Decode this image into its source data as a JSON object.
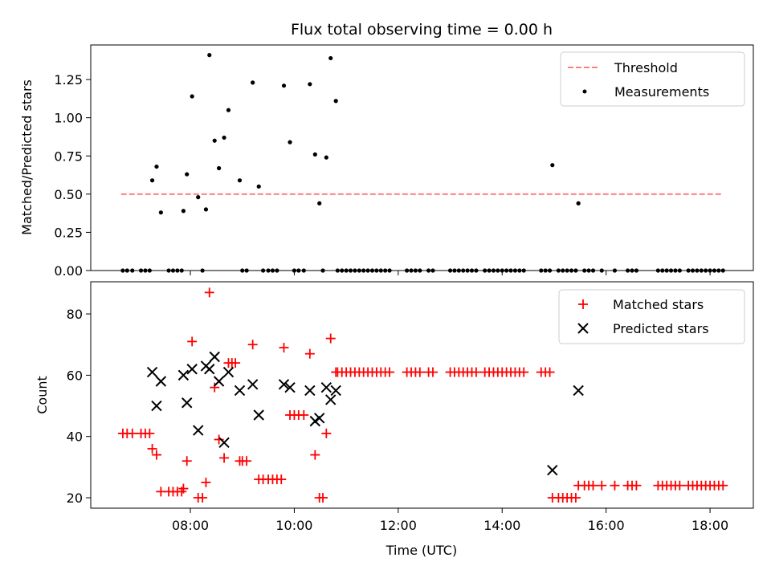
{
  "title": "Flux total observing time = 0.00 h",
  "xlabel": "Time (UTC)",
  "xticks": [
    "08:00",
    "10:00",
    "12:00",
    "14:00",
    "16:00",
    "18:00"
  ],
  "colors": {
    "threshold": "#ff7f7f",
    "measurement": "#000000",
    "matched": "#ff0000",
    "predicted": "#000000"
  },
  "chart_data": [
    {
      "type": "scatter",
      "ylabel": "Matched/Predicted stars",
      "yticks": [
        "0.00",
        "0.25",
        "0.50",
        "0.75",
        "1.00",
        "1.25"
      ],
      "xlim": [
        "06:05",
        "18:50"
      ],
      "ylim": [
        0,
        1.4764
      ],
      "legend_position": "top-right",
      "legend": {
        "threshold": "Threshold",
        "measurements": "Measurements"
      },
      "threshold": {
        "value": 0.5,
        "x_range": [
          "06:40",
          "18:15"
        ]
      },
      "series": [
        {
          "name": "Measurements",
          "points": [
            [
              "07:16",
              0.59
            ],
            [
              "07:21",
              0.68
            ],
            [
              "07:26",
              0.38
            ],
            [
              "07:52",
              0.39
            ],
            [
              "07:56",
              0.63
            ],
            [
              "08:02",
              1.14
            ],
            [
              "08:09",
              0.48
            ],
            [
              "08:18",
              0.4
            ],
            [
              "08:22",
              1.41
            ],
            [
              "08:28",
              0.85
            ],
            [
              "08:33",
              0.67
            ],
            [
              "08:39",
              0.87
            ],
            [
              "08:44",
              1.05
            ],
            [
              "08:57",
              0.59
            ],
            [
              "09:12",
              1.23
            ],
            [
              "09:19",
              0.55
            ],
            [
              "09:48",
              1.21
            ],
            [
              "09:55",
              0.84
            ],
            [
              "10:18",
              1.22
            ],
            [
              "10:24",
              0.76
            ],
            [
              "10:29",
              0.44
            ],
            [
              "10:37",
              0.74
            ],
            [
              "10:42",
              1.39
            ],
            [
              "10:48",
              1.11
            ],
            [
              "14:58",
              0.69
            ],
            [
              "15:28",
              0.44
            ],
            [
              "06:42",
              0
            ],
            [
              "06:47",
              0
            ],
            [
              "06:53",
              0
            ],
            [
              "07:03",
              0
            ],
            [
              "07:08",
              0
            ],
            [
              "07:13",
              0
            ],
            [
              "07:35",
              0
            ],
            [
              "07:40",
              0
            ],
            [
              "07:45",
              0
            ],
            [
              "07:50",
              0
            ],
            [
              "08:14",
              0
            ],
            [
              "09:00",
              0
            ],
            [
              "09:05",
              0
            ],
            [
              "09:24",
              0
            ],
            [
              "09:30",
              0
            ],
            [
              "09:35",
              0
            ],
            [
              "09:40",
              0
            ],
            [
              "10:00",
              0
            ],
            [
              "10:05",
              0
            ],
            [
              "10:11",
              0
            ],
            [
              "10:33",
              0
            ],
            [
              "10:50",
              0
            ],
            [
              "10:55",
              0
            ],
            [
              "11:00",
              0
            ],
            [
              "11:05",
              0
            ],
            [
              "11:10",
              0
            ],
            [
              "11:15",
              0
            ],
            [
              "11:20",
              0
            ],
            [
              "11:25",
              0
            ],
            [
              "11:30",
              0
            ],
            [
              "11:35",
              0
            ],
            [
              "11:40",
              0
            ],
            [
              "11:45",
              0
            ],
            [
              "11:50",
              0
            ],
            [
              "12:10",
              0
            ],
            [
              "12:15",
              0
            ],
            [
              "12:20",
              0
            ],
            [
              "12:25",
              0
            ],
            [
              "12:35",
              0
            ],
            [
              "12:40",
              0
            ],
            [
              "13:00",
              0
            ],
            [
              "13:05",
              0
            ],
            [
              "13:10",
              0
            ],
            [
              "13:15",
              0
            ],
            [
              "13:20",
              0
            ],
            [
              "13:25",
              0
            ],
            [
              "13:30",
              0
            ],
            [
              "13:40",
              0
            ],
            [
              "13:45",
              0
            ],
            [
              "13:50",
              0
            ],
            [
              "13:55",
              0
            ],
            [
              "14:00",
              0
            ],
            [
              "14:05",
              0
            ],
            [
              "14:10",
              0
            ],
            [
              "14:15",
              0
            ],
            [
              "14:20",
              0
            ],
            [
              "14:25",
              0
            ],
            [
              "14:45",
              0
            ],
            [
              "14:50",
              0
            ],
            [
              "14:55",
              0
            ],
            [
              "15:05",
              0
            ],
            [
              "15:10",
              0
            ],
            [
              "15:15",
              0
            ],
            [
              "15:20",
              0
            ],
            [
              "15:25",
              0
            ],
            [
              "15:35",
              0
            ],
            [
              "15:40",
              0
            ],
            [
              "15:45",
              0
            ],
            [
              "15:55",
              0
            ],
            [
              "16:10",
              0
            ],
            [
              "16:25",
              0
            ],
            [
              "16:30",
              0
            ],
            [
              "16:35",
              0
            ],
            [
              "17:00",
              0
            ],
            [
              "17:05",
              0
            ],
            [
              "17:10",
              0
            ],
            [
              "17:15",
              0
            ],
            [
              "17:20",
              0
            ],
            [
              "17:25",
              0
            ],
            [
              "17:35",
              0
            ],
            [
              "17:40",
              0
            ],
            [
              "17:45",
              0
            ],
            [
              "17:50",
              0
            ],
            [
              "17:55",
              0
            ],
            [
              "18:00",
              0
            ],
            [
              "18:05",
              0
            ],
            [
              "18:10",
              0
            ],
            [
              "18:15",
              0
            ]
          ]
        }
      ]
    },
    {
      "type": "scatter",
      "ylabel": "Count",
      "yticks": [
        "20",
        "40",
        "60",
        "80"
      ],
      "xlim": [
        "06:05",
        "18:50"
      ],
      "ylim": [
        16.6,
        90.5
      ],
      "legend_position": "top-right",
      "series": [
        {
          "name": "Matched stars",
          "marker": "plus",
          "points": [
            [
              "06:42",
              41
            ],
            [
              "06:47",
              41
            ],
            [
              "06:53",
              41
            ],
            [
              "07:03",
              41
            ],
            [
              "07:08",
              41
            ],
            [
              "07:13",
              41
            ],
            [
              "07:16",
              36
            ],
            [
              "07:21",
              34
            ],
            [
              "07:26",
              22
            ],
            [
              "07:35",
              22
            ],
            [
              "07:40",
              22
            ],
            [
              "07:45",
              22
            ],
            [
              "07:50",
              22
            ],
            [
              "07:52",
              23
            ],
            [
              "07:56",
              32
            ],
            [
              "08:02",
              71
            ],
            [
              "08:09",
              20
            ],
            [
              "08:14",
              20
            ],
            [
              "08:18",
              25
            ],
            [
              "08:22",
              87
            ],
            [
              "08:28",
              56
            ],
            [
              "08:33",
              39
            ],
            [
              "08:39",
              33
            ],
            [
              "08:44",
              64
            ],
            [
              "08:48",
              64
            ],
            [
              "08:52",
              64
            ],
            [
              "08:57",
              32
            ],
            [
              "09:00",
              32
            ],
            [
              "09:05",
              32
            ],
            [
              "09:12",
              70
            ],
            [
              "09:19",
              26
            ],
            [
              "09:24",
              26
            ],
            [
              "09:30",
              26
            ],
            [
              "09:35",
              26
            ],
            [
              "09:40",
              26
            ],
            [
              "09:45",
              26
            ],
            [
              "09:48",
              69
            ],
            [
              "09:55",
              47
            ],
            [
              "10:00",
              47
            ],
            [
              "10:05",
              47
            ],
            [
              "10:11",
              47
            ],
            [
              "10:18",
              67
            ],
            [
              "10:24",
              34
            ],
            [
              "10:29",
              20
            ],
            [
              "10:33",
              20
            ],
            [
              "10:37",
              41
            ],
            [
              "10:42",
              72
            ],
            [
              "10:48",
              61
            ],
            [
              "10:50",
              61
            ],
            [
              "10:55",
              61
            ],
            [
              "11:00",
              61
            ],
            [
              "11:05",
              61
            ],
            [
              "11:10",
              61
            ],
            [
              "11:15",
              61
            ],
            [
              "11:20",
              61
            ],
            [
              "11:25",
              61
            ],
            [
              "11:30",
              61
            ],
            [
              "11:35",
              61
            ],
            [
              "11:40",
              61
            ],
            [
              "11:45",
              61
            ],
            [
              "11:50",
              61
            ],
            [
              "12:10",
              61
            ],
            [
              "12:15",
              61
            ],
            [
              "12:20",
              61
            ],
            [
              "12:25",
              61
            ],
            [
              "12:35",
              61
            ],
            [
              "12:40",
              61
            ],
            [
              "13:00",
              61
            ],
            [
              "13:05",
              61
            ],
            [
              "13:10",
              61
            ],
            [
              "13:15",
              61
            ],
            [
              "13:20",
              61
            ],
            [
              "13:25",
              61
            ],
            [
              "13:30",
              61
            ],
            [
              "13:40",
              61
            ],
            [
              "13:45",
              61
            ],
            [
              "13:50",
              61
            ],
            [
              "13:55",
              61
            ],
            [
              "14:00",
              61
            ],
            [
              "14:05",
              61
            ],
            [
              "14:10",
              61
            ],
            [
              "14:15",
              61
            ],
            [
              "14:20",
              61
            ],
            [
              "14:25",
              61
            ],
            [
              "14:45",
              61
            ],
            [
              "14:50",
              61
            ],
            [
              "14:55",
              61
            ],
            [
              "14:58",
              20
            ],
            [
              "15:05",
              20
            ],
            [
              "15:10",
              20
            ],
            [
              "15:15",
              20
            ],
            [
              "15:20",
              20
            ],
            [
              "15:25",
              20
            ],
            [
              "15:28",
              24
            ],
            [
              "15:35",
              24
            ],
            [
              "15:40",
              24
            ],
            [
              "15:45",
              24
            ],
            [
              "15:55",
              24
            ],
            [
              "16:10",
              24
            ],
            [
              "16:25",
              24
            ],
            [
              "16:30",
              24
            ],
            [
              "16:35",
              24
            ],
            [
              "17:00",
              24
            ],
            [
              "17:05",
              24
            ],
            [
              "17:10",
              24
            ],
            [
              "17:15",
              24
            ],
            [
              "17:20",
              24
            ],
            [
              "17:25",
              24
            ],
            [
              "17:35",
              24
            ],
            [
              "17:40",
              24
            ],
            [
              "17:45",
              24
            ],
            [
              "17:50",
              24
            ],
            [
              "17:55",
              24
            ],
            [
              "18:00",
              24
            ],
            [
              "18:05",
              24
            ],
            [
              "18:10",
              24
            ],
            [
              "18:15",
              24
            ]
          ]
        },
        {
          "name": "Predicted stars",
          "marker": "x",
          "points": [
            [
              "07:16",
              61
            ],
            [
              "07:21",
              50
            ],
            [
              "07:26",
              58
            ],
            [
              "07:52",
              60
            ],
            [
              "07:56",
              51
            ],
            [
              "08:02",
              62
            ],
            [
              "08:09",
              42
            ],
            [
              "08:18",
              63
            ],
            [
              "08:22",
              62
            ],
            [
              "08:28",
              66
            ],
            [
              "08:33",
              58
            ],
            [
              "08:39",
              38
            ],
            [
              "08:44",
              61
            ],
            [
              "08:57",
              55
            ],
            [
              "09:12",
              57
            ],
            [
              "09:19",
              47
            ],
            [
              "09:48",
              57
            ],
            [
              "09:55",
              56
            ],
            [
              "10:18",
              55
            ],
            [
              "10:24",
              45
            ],
            [
              "10:29",
              46
            ],
            [
              "10:37",
              56
            ],
            [
              "10:42",
              52
            ],
            [
              "10:48",
              55
            ],
            [
              "14:58",
              29
            ],
            [
              "15:28",
              55
            ]
          ]
        }
      ]
    }
  ]
}
